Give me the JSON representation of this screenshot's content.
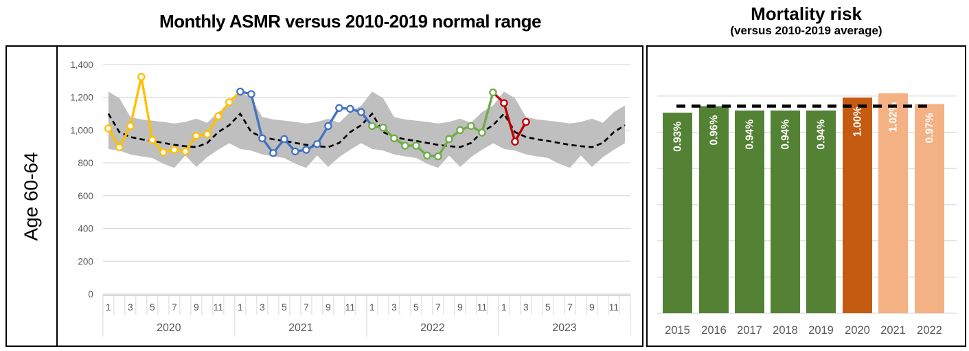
{
  "header": {
    "left_chart_title": "Monthly ASMR versus 2010-2019 normal range",
    "right_chart_title": "Mortality risk",
    "right_chart_subtitle": "(versus 2010-2019 average)"
  },
  "row_label": "Age 60-64",
  "chart_data": [
    {
      "type": "line",
      "title": "Monthly ASMR versus 2010-2019 normal range",
      "y_axis": {
        "min": 0,
        "max": 1400,
        "step": 200,
        "tick_labels": [
          "0",
          "200",
          "400",
          "600",
          "800",
          "1,000",
          "1,200",
          "1,400"
        ]
      },
      "x_axis": {
        "month_tick_labels": [
          "1",
          "3",
          "5",
          "7",
          "9",
          "11"
        ],
        "years": [
          "2020",
          "2021",
          "2022",
          "2023"
        ]
      },
      "grid": true,
      "normal_range": {
        "name": "2010-2019 normal range",
        "band_color": "#BFBFBF",
        "upper": [
          1235,
          1195,
          1080,
          1065,
          1058,
          1050,
          1040,
          1050,
          1070,
          1045,
          1110,
          1150
        ],
        "lower": [
          885,
          875,
          852,
          840,
          830,
          795,
          770,
          845,
          775,
          835,
          880,
          920
        ],
        "average": [
          1100,
          988,
          958,
          944,
          934,
          922,
          910,
          902,
          896,
          922,
          988,
          1030
        ],
        "average_color": "#000000",
        "average_style": "dashed"
      },
      "series": [
        {
          "name": "2020",
          "color": "#FFC000",
          "values": [
            1010,
            895,
            1025,
            1325,
            940,
            865,
            880,
            870,
            965,
            975,
            1085,
            1170
          ]
        },
        {
          "name": "2021",
          "color": "#4472C4",
          "values": [
            1235,
            1220,
            950,
            860,
            945,
            870,
            880,
            915,
            1025,
            1135,
            1130,
            1110
          ]
        },
        {
          "name": "2022",
          "color": "#70AD47",
          "values": [
            1025,
            1015,
            950,
            905,
            905,
            845,
            840,
            945,
            1000,
            1025,
            985,
            1230
          ]
        },
        {
          "name": "2023",
          "color": "#C00000",
          "values": [
            1165,
            930,
            1050
          ]
        }
      ]
    },
    {
      "type": "bar",
      "title": "Mortality risk (versus 2010-2019 average)",
      "categories": [
        "2015",
        "2016",
        "2017",
        "2018",
        "2019",
        "2020",
        "2021",
        "2022"
      ],
      "values": [
        0.93,
        0.96,
        0.94,
        0.94,
        0.94,
        1.0,
        1.02,
        0.97
      ],
      "labels": [
        "0.93%",
        "0.96%",
        "0.94%",
        "0.94%",
        "0.94%",
        "1.00%",
        "1.02%",
        "0.97%"
      ],
      "bar_colors": [
        "#548235",
        "#548235",
        "#548235",
        "#548235",
        "#548235",
        "#C55A11",
        "#F4B183",
        "#F4B183"
      ],
      "label_color": "#FFFFFF",
      "reference_line": {
        "value": 0.96,
        "color": "#000000",
        "style": "dashed"
      },
      "ylim": [
        0,
        1.24
      ],
      "grid": true
    }
  ]
}
